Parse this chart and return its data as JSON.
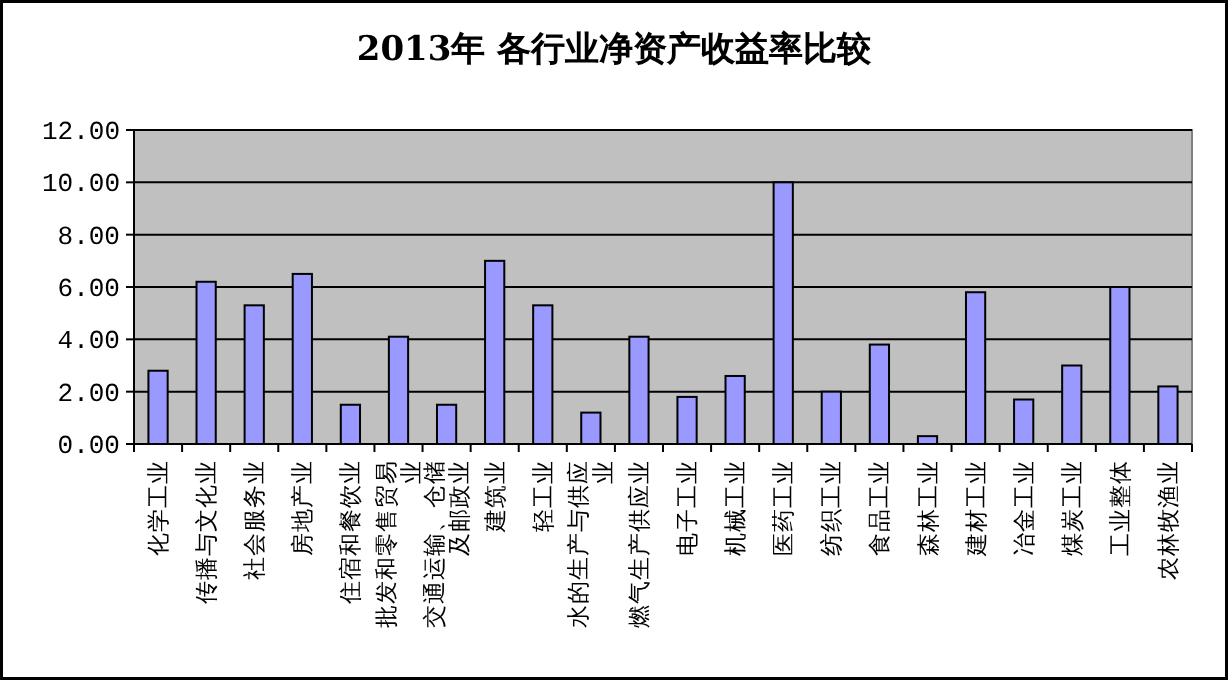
{
  "chart_data": {
    "type": "bar",
    "title": "2013年 各行业净资产收益率比较",
    "categories": [
      "化学工业",
      "传播与文化业",
      "社会服务业",
      "房地产业",
      "住宿和餐饮业",
      "批发和零售贸易业",
      "交通运输、仓储及邮政业",
      "建筑业",
      "轻工业",
      "水的生产与供应业",
      "燃气生产供应业",
      "电子工业",
      "机械工业",
      "医药工业",
      "纺织工业",
      "食品工业",
      "森林工业",
      "建材工业",
      "冶金工业",
      "煤炭工业",
      "工业整体",
      "农林牧渔业"
    ],
    "values": [
      2.8,
      6.2,
      5.3,
      6.5,
      1.5,
      4.1,
      1.5,
      7.0,
      5.3,
      1.2,
      4.1,
      1.8,
      2.6,
      10.0,
      2.0,
      3.8,
      0.3,
      5.8,
      1.7,
      3.0,
      6.0,
      2.2
    ],
    "color": "#9999ff",
    "ylim": [
      0,
      12
    ],
    "yticks": [
      {
        "value": 0,
        "label": "0.00"
      },
      {
        "value": 2,
        "label": "2.00"
      },
      {
        "value": 4,
        "label": "4.00"
      },
      {
        "value": 6,
        "label": "6.00"
      },
      {
        "value": 8,
        "label": "8.00"
      },
      {
        "value": 10,
        "label": "10.00"
      },
      {
        "value": 12,
        "label": "12.00"
      }
    ],
    "grid": "y"
  }
}
